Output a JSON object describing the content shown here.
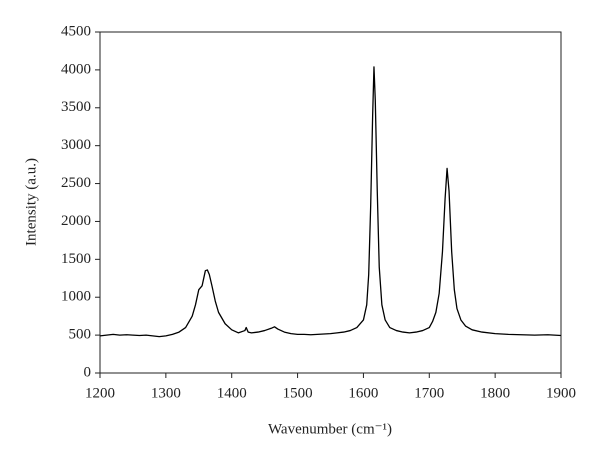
{
  "chart_data": {
    "type": "line",
    "x_label": "Wavenumber (cm⁻¹)",
    "y_label": "Intensity (a.u.)",
    "color": "#000000",
    "x": [
      1200,
      1210,
      1220,
      1230,
      1240,
      1250,
      1260,
      1270,
      1280,
      1290,
      1300,
      1310,
      1320,
      1330,
      1340,
      1345,
      1350,
      1355,
      1360,
      1363,
      1366,
      1370,
      1375,
      1380,
      1390,
      1400,
      1410,
      1420,
      1422,
      1425,
      1430,
      1440,
      1450,
      1460,
      1465,
      1470,
      1480,
      1490,
      1500,
      1510,
      1520,
      1530,
      1540,
      1550,
      1560,
      1570,
      1580,
      1590,
      1600,
      1605,
      1608,
      1611,
      1614,
      1616,
      1618,
      1621,
      1624,
      1628,
      1633,
      1640,
      1650,
      1660,
      1670,
      1680,
      1690,
      1700,
      1705,
      1710,
      1715,
      1720,
      1724,
      1727,
      1730,
      1734,
      1738,
      1742,
      1748,
      1755,
      1765,
      1780,
      1800,
      1820,
      1840,
      1860,
      1880,
      1900
    ],
    "values": [
      490,
      500,
      510,
      500,
      505,
      500,
      495,
      500,
      490,
      480,
      490,
      510,
      540,
      600,
      750,
      900,
      1100,
      1150,
      1350,
      1360,
      1300,
      1150,
      950,
      800,
      650,
      570,
      530,
      560,
      600,
      540,
      530,
      540,
      560,
      590,
      610,
      580,
      540,
      520,
      510,
      510,
      505,
      510,
      515,
      520,
      530,
      540,
      560,
      600,
      700,
      900,
      1300,
      2200,
      3400,
      4040,
      3600,
      2400,
      1400,
      900,
      700,
      600,
      560,
      540,
      530,
      540,
      560,
      600,
      680,
      800,
      1050,
      1600,
      2300,
      2700,
      2400,
      1600,
      1100,
      850,
      700,
      620,
      570,
      540,
      520,
      510,
      505,
      500,
      505,
      495
    ],
    "xlim": [
      1200,
      1900
    ],
    "xticks": [
      1200,
      1300,
      1400,
      1500,
      1600,
      1700,
      1800,
      1900
    ],
    "ylim": [
      0,
      4500
    ],
    "yticks": [
      0,
      500,
      1000,
      1500,
      2000,
      2500,
      3000,
      3500,
      4000,
      4500
    ]
  }
}
